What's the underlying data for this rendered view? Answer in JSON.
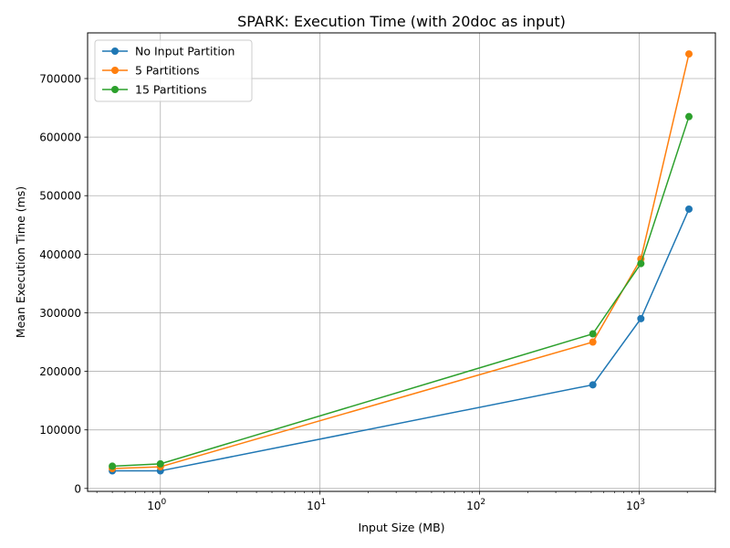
{
  "chart_data": {
    "type": "line",
    "title": "SPARK: Execution Time (with 20doc as input)",
    "xlabel": "Input Size (MB)",
    "ylabel": "Mean Execution Time (ms)",
    "xscale": "log",
    "xlim": [
      0.35,
      3000
    ],
    "ylim": [
      -5000,
      778000
    ],
    "grid": true,
    "legend_position": "top-left",
    "x_ticks": [
      {
        "value": 1,
        "base": "10",
        "exp": "0"
      },
      {
        "value": 10,
        "base": "10",
        "exp": "1"
      },
      {
        "value": 100,
        "base": "10",
        "exp": "2"
      },
      {
        "value": 1000,
        "base": "10",
        "exp": "3"
      }
    ],
    "y_ticks": [
      0,
      100000,
      200000,
      300000,
      400000,
      500000,
      600000,
      700000
    ],
    "y_tick_labels": [
      "0",
      "100000",
      "200000",
      "300000",
      "400000",
      "500000",
      "600000",
      "700000"
    ],
    "x": [
      0.5,
      1,
      512,
      1024,
      2048
    ],
    "series": [
      {
        "name": "No Input Partition",
        "color": "#1f77b4",
        "values": [
          30000,
          30000,
          177000,
          290000,
          477000
        ]
      },
      {
        "name": "5 Partitions",
        "color": "#ff7f0e",
        "values": [
          34000,
          37000,
          250000,
          392000,
          742000
        ]
      },
      {
        "name": "15 Partitions",
        "color": "#2ca02c",
        "values": [
          38000,
          42000,
          264000,
          384000,
          635000
        ]
      }
    ]
  }
}
